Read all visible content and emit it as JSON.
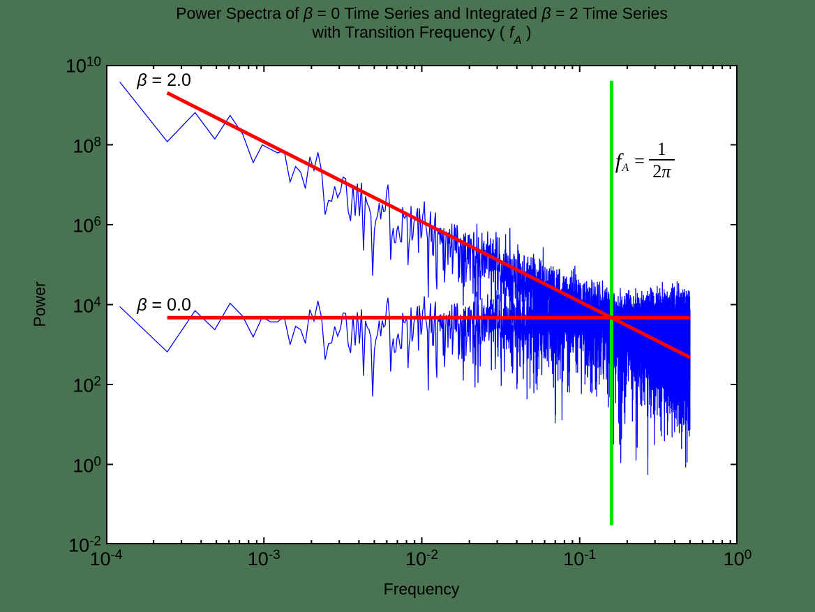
{
  "title": {
    "line1": "Power Spectra of β = 0 Time Series and Integrated β = 2 Time Series",
    "line2_pre": "with Transition Frequency  ( ",
    "line2_var": "f",
    "line2_sub": "A",
    "line2_post": " )"
  },
  "axes": {
    "xlabel": "Frequency",
    "ylabel": "Power",
    "x_tick_labels": [
      {
        "base": "10",
        "exp": "-4"
      },
      {
        "base": "10",
        "exp": "-3"
      },
      {
        "base": "10",
        "exp": "-2"
      },
      {
        "base": "10",
        "exp": "-1"
      },
      {
        "base": "10",
        "exp": "0"
      }
    ],
    "y_tick_labels": [
      {
        "base": "10",
        "exp": "10"
      },
      {
        "base": "10",
        "exp": "8"
      },
      {
        "base": "10",
        "exp": "6"
      },
      {
        "base": "10",
        "exp": "4"
      },
      {
        "base": "10",
        "exp": "2"
      },
      {
        "base": "10",
        "exp": "0"
      },
      {
        "base": "10",
        "exp": "-2"
      }
    ]
  },
  "annotations": {
    "beta2": {
      "text": "β = 2.0",
      "f": 0.000157,
      "p": 7200000000.0
    },
    "beta0": {
      "text": "β = 0.0",
      "f": 0.000157,
      "p": 17200.0
    },
    "formula": {
      "var": "f",
      "sub": "A",
      "eq": "=",
      "numerator": "1",
      "denominator": "2π",
      "f": 0.168,
      "p": 135000000.0
    }
  },
  "colors": {
    "background": "#4a7351",
    "plot_bg": "#ffffff",
    "frame": "#000000",
    "series_blue": "#0000ff",
    "fit_red": "#ff0000",
    "transition_green": "#00e400"
  },
  "chart_data": {
    "type": "line",
    "title": "Power Spectra of β = 0 Time Series and Integrated β = 2 Time Series with Transition Frequency ( f_A )",
    "xlabel": "Frequency",
    "ylabel": "Power",
    "x_scale": "log",
    "y_scale": "log",
    "xlim": [
      0.0001,
      1
    ],
    "ylim": [
      0.01,
      10000000000.0
    ],
    "x_ticks": [
      0.0001,
      0.001,
      0.01,
      0.1,
      1
    ],
    "y_ticks": [
      10000000000.0,
      100000000.0,
      1000000.0,
      10000.0,
      100.0,
      1,
      0.01
    ],
    "grid": false,
    "legend": "none (inline text labels)",
    "n_total": 8192,
    "n_points": 4096,
    "seed": 1337,
    "noise": "multiplicative exponential(1) periodogram scatter, shared between the two series",
    "eps_clamp": [
      0.0003,
      9
    ],
    "head_eps": {
      "beta0": [
        1.9,
        0.14,
        1.5,
        0.5,
        2.3,
        1.1,
        0.33,
        1.05
      ],
      "beta2": [
        0.47,
        0.06,
        0.72,
        0.28,
        1.7,
        0.85,
        0.22,
        0.8
      ]
    },
    "series": [
      {
        "name": "beta0-spectrum",
        "label": "β = 0.0",
        "color": "#0000ff",
        "model": "flat",
        "amplitude": 4700,
        "slope": 0,
        "f_min": 0.0001220703125,
        "f_max": 0.5,
        "line_width": 1.3
      },
      {
        "name": "beta2-spectrum",
        "label": "β = 2.0",
        "color": "#0000ff",
        "model": "powerlaw",
        "amplitude": 119,
        "slope": -2,
        "f_min": 0.0001220703125,
        "f_max": 0.5,
        "line_width": 1.3
      }
    ],
    "fits": [
      {
        "name": "beta2-fit",
        "color": "#ff0000",
        "model": "powerlaw",
        "amplitude": 119,
        "slope": -2,
        "f_start": 0.000244,
        "f_end": 0.5,
        "line_width": 5
      },
      {
        "name": "beta0-fit",
        "color": "#ff0000",
        "model": "flat",
        "level": 4700,
        "slope": 0,
        "f_start": 0.000244,
        "f_end": 0.5,
        "line_width": 5
      }
    ],
    "transition_line": {
      "label": "f_A = 1/(2π)",
      "f": 0.15915494,
      "value": "1/(2*pi)",
      "color": "#00e400",
      "p_top": 4000000000.0,
      "p_bottom": 0.03,
      "line_width": 5
    }
  }
}
